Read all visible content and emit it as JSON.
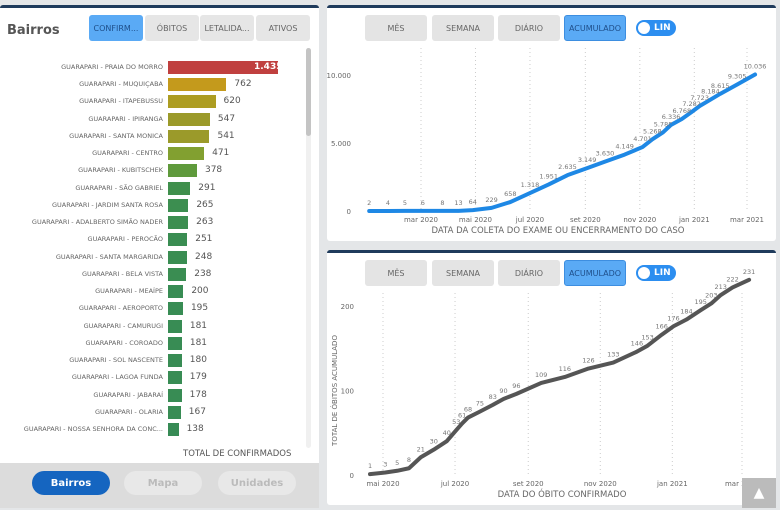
{
  "left": {
    "title": "Bairros",
    "tabs": [
      "CONFIRM...",
      "ÓBITOS",
      "LETALIDA...",
      "ATIVOS"
    ],
    "active_tab": 0,
    "footer_label": "TOTAL DE CONFIRMADOS",
    "nav": [
      "Bairros",
      "Mapa",
      "Unidades"
    ],
    "active_nav": 0,
    "chart_data": {
      "type": "bar",
      "orientation": "horizontal",
      "xlabel": "TOTAL DE CONFIRMADOS",
      "categories": [
        "GUARAPARI - PRAIA DO MORRO",
        "GUARAPARI - MUQUIÇABA",
        "GUARAPARI - ITAPEBUSSU",
        "GUARAPARI - IPIRANGA",
        "GUARAPARI - SANTA MONICA",
        "GUARAPARI - CENTRO",
        "GUARAPARI - KUBITSCHEK",
        "GUARAPARI - SÃO GABRIEL",
        "GUARAPARI - JARDIM SANTA ROSA",
        "GUARAPARI - ADALBERTO SIMÃO NADER",
        "GUARAPARI - PEROCÃO",
        "GUARAPARI - SANTA MARGARIDA",
        "GUARAPARI - BELA VISTA",
        "GUARAPARI - MEAÍPE",
        "GUARAPARI - AEROPORTO",
        "GUARAPARI - CAMURUGI",
        "GUARAPARI - COROADO",
        "GUARAPARI - SOL NASCENTE",
        "GUARAPARI - LAGOA FUNDA",
        "GUARAPARI - JABARAÍ",
        "GUARAPARI - OLARIA",
        "GUARAPARI - NOSSA SENHORA DA CONC..."
      ],
      "values": [
        1435,
        762,
        620,
        547,
        541,
        471,
        378,
        291,
        265,
        263,
        251,
        248,
        238,
        200,
        195,
        181,
        181,
        180,
        179,
        178,
        167,
        138
      ],
      "value_labels": [
        "1.435",
        "762",
        "620",
        "547",
        "541",
        "471",
        "378",
        "291",
        "265",
        "263",
        "251",
        "248",
        "238",
        "200",
        "195",
        "181",
        "181",
        "180",
        "179",
        "178",
        "167",
        "138"
      ],
      "colors": [
        "#c0403f",
        "#c49a1c",
        "#ad9d22",
        "#9b9a2a",
        "#9b9a2a",
        "#82a030",
        "#5f9a3c",
        "#3f8f4c",
        "#3c8e50",
        "#3c8e50",
        "#3a8d52",
        "#3a8d52",
        "#3a8d52",
        "#388c54",
        "#388c54",
        "#388c54",
        "#388c54",
        "#388c54",
        "#388c54",
        "#388c54",
        "#388c54",
        "#378b55"
      ]
    }
  },
  "top": {
    "buttons": [
      "MÊS",
      "SEMANA",
      "DIÁRIO",
      "ACUMULADO"
    ],
    "active": 3,
    "toggle": "LIN",
    "chart_data": {
      "type": "line",
      "color": "#1e88e5",
      "xlabel": "DATA DA COLETA DO EXAME OU ENCERRAMENTO DO CASO",
      "ylabel": "",
      "yticks": [
        0,
        5000,
        10000
      ],
      "ytick_labels": [
        "0",
        "5.000",
        "10.000"
      ],
      "ylim": [
        0,
        10500
      ],
      "xticks": [
        "2020-03-01",
        "2020-05-01",
        "2020-07-01",
        "2020-09-01",
        "2020-11-01",
        "2021-01-01",
        "2021-03-01"
      ],
      "xtick_labels": [
        "mar 2020",
        "mai 2020",
        "jul 2020",
        "set 2020",
        "nov 2020",
        "jan 2021",
        "mar 2021"
      ],
      "x": [
        "2020-01-03",
        "2020-01-24",
        "2020-02-12",
        "2020-03-03",
        "2020-03-25",
        "2020-04-12",
        "2020-04-28",
        "2020-05-19",
        "2020-06-09",
        "2020-07-01",
        "2020-07-22",
        "2020-08-12",
        "2020-09-03",
        "2020-09-23",
        "2020-10-15",
        "2020-11-04",
        "2020-11-15",
        "2020-11-27",
        "2020-12-06",
        "2020-12-18",
        "2020-12-29",
        "2021-01-07",
        "2021-01-19",
        "2021-01-30",
        "2021-02-18",
        "2021-03-10"
      ],
      "y": [
        2,
        4,
        5,
        6,
        8,
        13,
        64,
        229,
        658,
        1318,
        1951,
        2635,
        3149,
        3630,
        4149,
        4701,
        5268,
        5788,
        6336,
        6768,
        7282,
        7723,
        8184,
        8615,
        9305,
        10036
      ],
      "labels": [
        "2",
        "4",
        "5",
        "6",
        "8",
        "13",
        "64",
        "229",
        "658",
        "1.318",
        "1.951",
        "2.635",
        "3.149",
        "3.630",
        "4.149",
        "4.701",
        "5.268",
        "5.788",
        "6.336",
        "6.768",
        "7.282",
        "7.723",
        "8.184",
        "8.615",
        "9.305",
        "10.036"
      ]
    }
  },
  "bottom": {
    "buttons": [
      "MÊS",
      "SEMANA",
      "DIÁRIO",
      "ACUMULADO"
    ],
    "active": 3,
    "toggle": "LIN",
    "chart_data": {
      "type": "line",
      "color": "#555555",
      "xlabel": "DATA DO ÓBITO CONFIRMADO",
      "ylabel": "TOTAL DE ÓBITOS ACUMULADO",
      "yticks": [
        0,
        100,
        200
      ],
      "ytick_labels": [
        "0",
        "100",
        "200"
      ],
      "ylim": [
        0,
        240
      ],
      "xticks": [
        "2020-05-01",
        "2020-07-01",
        "2020-09-01",
        "2020-11-01",
        "2021-01-01",
        "2021-03-01"
      ],
      "xtick_labels": [
        "mai 2020",
        "jul 2020",
        "set 2020",
        "nov 2020",
        "jan 2021",
        "mar 2021"
      ],
      "x": [
        "2020-04-20",
        "2020-05-03",
        "2020-05-13",
        "2020-05-23",
        "2020-06-02",
        "2020-06-13",
        "2020-06-24",
        "2020-07-02",
        "2020-07-07",
        "2020-07-12",
        "2020-07-22",
        "2020-08-02",
        "2020-08-11",
        "2020-08-22",
        "2020-09-12",
        "2020-10-02",
        "2020-10-22",
        "2020-11-12",
        "2020-12-02",
        "2020-12-11",
        "2020-12-23",
        "2021-01-02",
        "2021-01-13",
        "2021-01-25",
        "2021-02-03",
        "2021-02-11",
        "2021-02-21",
        "2021-03-07"
      ],
      "y": [
        1,
        3,
        5,
        8,
        21,
        30,
        40,
        53,
        61,
        68,
        75,
        83,
        90,
        96,
        109,
        116,
        126,
        133,
        146,
        153,
        166,
        176,
        184,
        195,
        203,
        213,
        222,
        231
      ],
      "labels": [
        "1",
        "3",
        "5",
        "8",
        "21",
        "30",
        "40",
        "53",
        "61",
        "68",
        "75",
        "83",
        "90",
        "96",
        "109",
        "116",
        "126",
        "133",
        "146",
        "153",
        "166",
        "176",
        "184",
        "195",
        "203",
        "213",
        "222",
        "231"
      ]
    }
  }
}
